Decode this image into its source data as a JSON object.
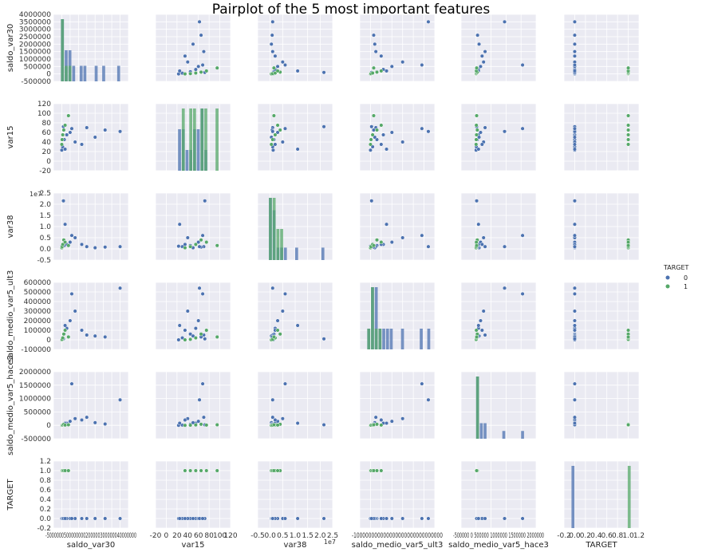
{
  "title": "Pairplot of the 5 most important features",
  "colors": {
    "class0": "#4c72b0",
    "class1": "#55a868",
    "panel": "#eaeaf2",
    "grid": "#ffffff"
  },
  "chart_data": {
    "type": "scatter",
    "title": "Pairplot of the 5 most important features",
    "variables": [
      "saldo_var30",
      "var15",
      "var38",
      "saldo_medio_var5_ult3",
      "saldo_medio_var5_hace3",
      "TARGET"
    ],
    "legend": {
      "title": "TARGET",
      "entries": [
        "0",
        "1"
      ],
      "position": "right"
    },
    "grid": true,
    "axes": {
      "saldo_var30": {
        "range": [
          -500000,
          4000000
        ],
        "ticks": [
          -500000,
          0,
          500000,
          1000000,
          1500000,
          2000000,
          2500000,
          3000000,
          3500000,
          4000000
        ],
        "tick_labels": [
          "-500000",
          "0",
          "500000",
          "1000000",
          "1500000",
          "2000000",
          "2500000",
          "3000000",
          "3500000",
          "4000000"
        ],
        "x_tick_text": "-5000000500000000200000300000040000000"
      },
      "var15": {
        "range": [
          -20,
          120
        ],
        "ticks": [
          -20,
          0,
          20,
          40,
          60,
          80,
          100,
          120
        ],
        "tick_labels": [
          "-20",
          "0",
          "20",
          "40",
          "60",
          "80",
          "100",
          "120"
        ],
        "x_tick_labels": [
          "-20",
          "0",
          "20",
          "40",
          "60",
          "80",
          "100",
          "120"
        ]
      },
      "var38": {
        "range": [
          -0.5,
          2.5
        ],
        "ticks": [
          -0.5,
          0.0,
          0.5,
          1.0,
          1.5,
          2.0,
          2.5
        ],
        "tick_labels": [
          "-0.5",
          "0.0",
          "0.5",
          "1.0",
          "1.5",
          "2.0",
          "2.5"
        ],
        "exponent": "1e7",
        "x_tick_labels": [
          "-0.5",
          "0.0",
          "0.5",
          "1.0",
          "1.5",
          "2.0",
          "2.5"
        ]
      },
      "saldo_medio_var5_ult3": {
        "range": [
          -100000,
          600000
        ],
        "ticks": [
          -100000,
          0,
          100000,
          200000,
          300000,
          400000,
          500000,
          600000
        ],
        "tick_labels": [
          "-100000",
          "0",
          "100000",
          "200000",
          "300000",
          "400000",
          "500000",
          "600000"
        ],
        "x_tick_text": "-100000000000000000000000000000"
      },
      "saldo_medio_var5_hace3": {
        "range": [
          -500000,
          2000000
        ],
        "ticks": [
          -500000,
          0,
          500000,
          1000000,
          1500000,
          2000000
        ],
        "tick_labels": [
          "-500000",
          "0",
          "500000",
          "1000000",
          "1500000",
          "2000000"
        ],
        "x_tick_text": "-500000 0 500000 1000000 1500000 2000000"
      },
      "TARGET": {
        "range": [
          -0.2,
          1.2
        ],
        "ticks": [
          -0.2,
          0.0,
          0.2,
          0.4,
          0.6,
          0.8,
          1.0,
          1.2
        ],
        "tick_labels": [
          "-0.2",
          "0.0",
          "0.2",
          "0.4",
          "0.6",
          "0.8",
          "1.0",
          "1.2"
        ],
        "x_tick_labels": [
          "-0.2",
          "0.0",
          "0.2",
          "0.4",
          "0.6",
          "0.8",
          "1.0",
          "1.2"
        ]
      }
    },
    "series": [
      {
        "name": "0",
        "points": [
          {
            "saldo_var30": 0,
            "var15": 23,
            "var38": 0.12,
            "saldo_medio_var5_ult3": 0,
            "saldo_medio_var5_hace3": 0,
            "TARGET": 0
          },
          {
            "saldo_var30": 50000,
            "var15": 30,
            "var38": 0.1,
            "saldo_medio_var5_ult3": 20000,
            "saldo_medio_var5_hace3": 10000,
            "TARGET": 0
          },
          {
            "saldo_var30": 150000,
            "var15": 45,
            "var38": 0.15,
            "saldo_medio_var5_ult3": 60000,
            "saldo_medio_var5_hace3": 40000,
            "TARGET": 0
          },
          {
            "saldo_var30": 300000,
            "var15": 55,
            "var38": 0.2,
            "saldo_medio_var5_ult3": 120000,
            "saldo_medio_var5_hace3": 80000,
            "TARGET": 0
          },
          {
            "saldo_var30": 500000,
            "var15": 60,
            "var38": 0.3,
            "saldo_medio_var5_ult3": 200000,
            "saldo_medio_var5_hace3": 150000,
            "TARGET": 0
          },
          {
            "saldo_var30": 800000,
            "var15": 40,
            "var38": 0.5,
            "saldo_medio_var5_ult3": 300000,
            "saldo_medio_var5_hace3": 250000,
            "TARGET": 0
          },
          {
            "saldo_var30": 1200000,
            "var15": 35,
            "var38": 0.2,
            "saldo_medio_var5_ult3": 100000,
            "saldo_medio_var5_hace3": 200000,
            "TARGET": 0
          },
          {
            "saldo_var30": 1500000,
            "var15": 70,
            "var38": 0.1,
            "saldo_medio_var5_ult3": 50000,
            "saldo_medio_var5_hace3": 300000,
            "TARGET": 0
          },
          {
            "saldo_var30": 2000000,
            "var15": 50,
            "var38": 0.05,
            "saldo_medio_var5_ult3": 40000,
            "saldo_medio_var5_hace3": 100000,
            "TARGET": 0
          },
          {
            "saldo_var30": 2600000,
            "var15": 65,
            "var38": 0.08,
            "saldo_medio_var5_ult3": 30000,
            "saldo_medio_var5_hace3": 50000,
            "TARGET": 0
          },
          {
            "saldo_var30": 3500000,
            "var15": 62,
            "var38": 0.1,
            "saldo_medio_var5_ult3": 540000,
            "saldo_medio_var5_hace3": 950000,
            "TARGET": 0
          },
          {
            "saldo_var30": 100000,
            "var15": 72,
            "var38": 2.15,
            "saldo_medio_var5_ult3": 10000,
            "saldo_medio_var5_hace3": 20000,
            "TARGET": 0
          },
          {
            "saldo_var30": 600000,
            "var15": 68,
            "var38": 0.6,
            "saldo_medio_var5_ult3": 480000,
            "saldo_medio_var5_hace3": 1550000,
            "TARGET": 0
          },
          {
            "saldo_var30": 200000,
            "var15": 25,
            "var38": 1.1,
            "saldo_medio_var5_ult3": 150000,
            "saldo_medio_var5_hace3": 80000,
            "TARGET": 0
          }
        ]
      },
      {
        "name": "1",
        "points": [
          {
            "saldo_var30": 0,
            "var15": 35,
            "var38": 0.05,
            "saldo_medio_var5_ult3": 0,
            "saldo_medio_var5_hace3": 0,
            "TARGET": 1
          },
          {
            "saldo_var30": 20000,
            "var15": 45,
            "var38": 0.1,
            "saldo_medio_var5_ult3": 5000,
            "saldo_medio_var5_hace3": 5000,
            "TARGET": 1
          },
          {
            "saldo_var30": 60000,
            "var15": 55,
            "var38": 0.2,
            "saldo_medio_var5_ult3": 20000,
            "saldo_medio_var5_hace3": 15000,
            "TARGET": 1
          },
          {
            "saldo_var30": 120000,
            "var15": 65,
            "var38": 0.4,
            "saldo_medio_var5_ult3": 60000,
            "saldo_medio_var5_hace3": 40000,
            "TARGET": 1
          },
          {
            "saldo_var30": 200000,
            "var15": 75,
            "var38": 0.3,
            "saldo_medio_var5_ult3": 100000,
            "saldo_medio_var5_hace3": 10000,
            "TARGET": 1
          },
          {
            "saldo_var30": 400000,
            "var15": 95,
            "var38": 0.15,
            "saldo_medio_var5_ult3": 30000,
            "saldo_medio_var5_hace3": 20000,
            "TARGET": 1
          }
        ]
      }
    ]
  }
}
